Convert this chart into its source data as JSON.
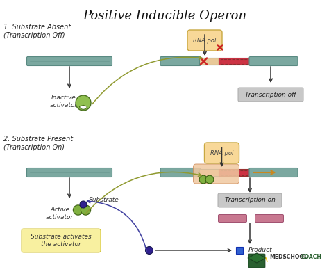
{
  "title": "Positive Inducible Operon",
  "title_fontsize": 13,
  "bg_color": "#ffffff",
  "section1_label": "1. Substrate Absent\n(Transcription Off)",
  "section2_label": "2. Substrate Present\n(Transcription On)",
  "dna_color": "#7ba8a0",
  "dna_outline": "#5a8a82",
  "promoter_color": "#e8c898",
  "gene_color": "#cc3344",
  "gene_outline": "#993030",
  "rna_pol_color": "#f8d898",
  "rna_pol_outline": "#c8a840",
  "inactive_activator_color": "#90c050",
  "active_activator_color": "#80b040",
  "substrate_color": "#302090",
  "arrow_color": "#333333",
  "curved_arrow_color": "#909a30",
  "gray_box_color": "#c8c8c8",
  "yellow_box_color": "#f8f0a0",
  "product_color": "#3060d0",
  "mrna_color": "#c87890",
  "x_color": "#cc2222",
  "transcription_arrow_color": "#c88820",
  "purple_arrow_color": "#4040a0",
  "logo_color": "#2a6030"
}
